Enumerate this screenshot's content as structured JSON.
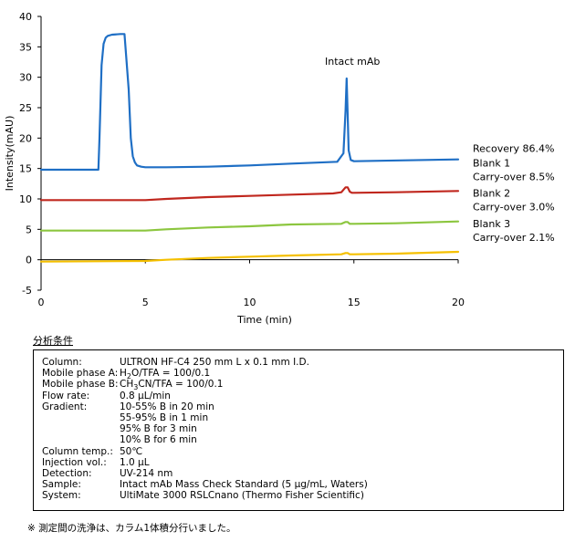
{
  "chart_data": {
    "type": "line",
    "xlabel": "Time (min)",
    "ylabel": "Intensity(mAU)",
    "xlim": [
      0,
      20
    ],
    "ylim": [
      -5,
      40
    ],
    "xticks": [
      "0",
      "5",
      "10",
      "15",
      "20"
    ],
    "yticks": [
      "-5",
      "0",
      "5",
      "10",
      "15",
      "20",
      "25",
      "30",
      "35",
      "40"
    ],
    "peak_annotation": "Intact  mAb",
    "series": [
      {
        "name": "Recovery",
        "label_lines": [
          "Recovery  86.4%"
        ],
        "color": "#1f6fc5",
        "x": [
          0,
          2.75,
          2.8,
          2.9,
          3.0,
          3.1,
          3.2,
          3.4,
          3.8,
          4.0,
          4.2,
          4.3,
          4.4,
          4.5,
          4.6,
          4.8,
          5.0,
          6.0,
          8.0,
          10.0,
          12.0,
          14.2,
          14.5,
          14.6,
          14.65,
          14.7,
          14.75,
          14.85,
          15.0,
          20.0
        ],
        "y": [
          14.8,
          14.8,
          20.0,
          32.0,
          35.5,
          36.5,
          36.8,
          37.0,
          37.1,
          37.1,
          28.0,
          20.0,
          17.0,
          16.0,
          15.5,
          15.3,
          15.2,
          15.2,
          15.3,
          15.5,
          15.8,
          16.1,
          17.5,
          24.5,
          29.8,
          24.0,
          18.0,
          16.4,
          16.2,
          16.5
        ]
      },
      {
        "name": "Blank 1",
        "label_lines": [
          "Blank 1",
          "Carry-over 8.5%"
        ],
        "color": "#c0271e",
        "x": [
          0,
          4.8,
          5.0,
          6.0,
          8.0,
          10.0,
          12.0,
          14.0,
          14.4,
          14.6,
          14.7,
          14.8,
          14.9,
          15.0,
          17.0,
          20.0
        ],
        "y": [
          9.8,
          9.8,
          9.8,
          10.0,
          10.3,
          10.5,
          10.7,
          10.9,
          11.1,
          11.9,
          11.9,
          11.2,
          11.0,
          11.0,
          11.1,
          11.3
        ]
      },
      {
        "name": "Blank 2",
        "label_lines": [
          "Blank 2",
          "Carry-over 3.0%"
        ],
        "color": "#8cc63f",
        "x": [
          0,
          5.0,
          6.0,
          8.0,
          10.0,
          12.0,
          14.4,
          14.6,
          14.7,
          14.8,
          15.0,
          17.0,
          20.0
        ],
        "y": [
          4.8,
          4.8,
          5.0,
          5.3,
          5.5,
          5.8,
          5.9,
          6.2,
          6.2,
          5.9,
          5.9,
          6.0,
          6.3
        ]
      },
      {
        "name": "Blank 3",
        "label_lines": [
          "Blank 3",
          "Carry-over 2.1%"
        ],
        "color": "#f5c000",
        "x": [
          0,
          5.0,
          6.0,
          8.0,
          10.0,
          12.0,
          14.4,
          14.6,
          14.7,
          14.8,
          15.0,
          17.0,
          20.0
        ],
        "y": [
          -0.3,
          -0.2,
          0.0,
          0.3,
          0.5,
          0.7,
          0.9,
          1.1,
          1.1,
          0.9,
          0.9,
          1.0,
          1.3
        ]
      }
    ]
  },
  "conditions": {
    "heading": "分析条件",
    "rows": [
      {
        "key": "Column:",
        "value": "ULTRON HF-C4 250 mm L x 0.1 mm I.D."
      },
      {
        "key": "Mobile phase A:",
        "value_pre": "H",
        "sub": "2",
        "value_post": "O/TFA = 100/0.1"
      },
      {
        "key": "Mobile phase B:",
        "value_pre": "CH",
        "sub": "3",
        "value_post": "CN/TFA = 100/0.1"
      },
      {
        "key": "Flow rate:",
        "value": "0.8 μL/min"
      },
      {
        "key": "Gradient:",
        "value": "10-55% B in 20 min"
      },
      {
        "key": "",
        "value": "55-95% B in 1 min"
      },
      {
        "key": "",
        "value": "95% B for 3 min"
      },
      {
        "key": "",
        "value": "10% B for 6 min"
      },
      {
        "key": "Column temp.:",
        "value": "50℃"
      },
      {
        "key": "Injection vol.:",
        "value": "1.0 μL"
      },
      {
        "key": "Detection:",
        "value": "UV-214 nm"
      },
      {
        "key": "Sample:",
        "value": "Intact mAb Mass Check Standard (5 μg/mL, Waters)"
      },
      {
        "key": "System:",
        "value": "UltiMate 3000 RSLCnano  (Thermo Fisher Scientific)"
      }
    ]
  },
  "footnote": "※ 測定間の洗浄は、カラム1体積分行いました。"
}
